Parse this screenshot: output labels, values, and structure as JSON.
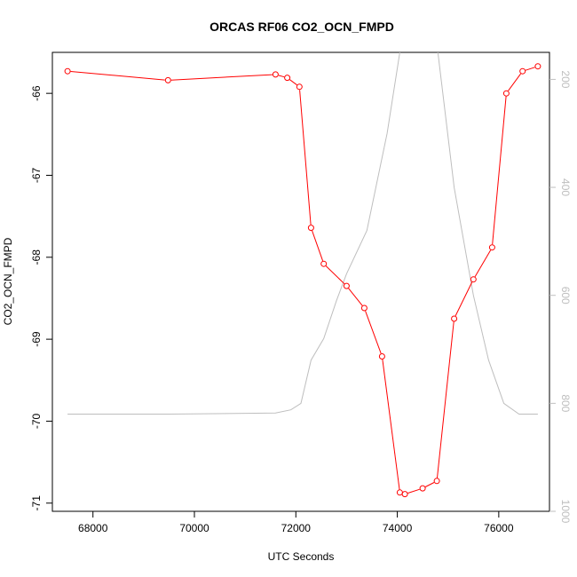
{
  "chart_data": {
    "type": "line",
    "title": "ORCAS RF06 CO2_OCN_FMPD",
    "xlabel": "UTC Seconds",
    "ylabel": "CO2_OCN_FMPD",
    "xlim": [
      67200,
      77000
    ],
    "ylim": [
      -71.1,
      -65.5
    ],
    "x_ticks": [
      "68000",
      "70000",
      "72000",
      "74000",
      "76000"
    ],
    "y_ticks": [
      "-66",
      "-67",
      "-68",
      "-69",
      "-70",
      "-71"
    ],
    "y2_ticks": [
      "200",
      "400",
      "600",
      "800",
      "1000"
    ],
    "y2_scale": "reversed",
    "y2_lim": [
      1000,
      150
    ],
    "grid": false,
    "series": [
      {
        "role": "primary",
        "color": "#ff0000",
        "markers": "open-circle",
        "x": [
          67500,
          69480,
          71600,
          71830,
          72070,
          72300,
          72550,
          73000,
          73350,
          73700,
          74050,
          74150,
          74500,
          74780,
          75120,
          75500,
          75870,
          76150,
          76470,
          76770
        ],
        "y": [
          -65.73,
          -65.84,
          -65.77,
          -65.81,
          -65.92,
          -67.64,
          -68.08,
          -68.35,
          -68.62,
          -69.21,
          -70.87,
          -70.89,
          -70.82,
          -70.73,
          -68.75,
          -68.27,
          -67.88,
          -66.0,
          -65.73,
          -65.67
        ]
      },
      {
        "role": "secondary",
        "color": "#bebebe",
        "markers": "none",
        "x": [
          67500,
          69500,
          71600,
          71900,
          72100,
          72300,
          72550,
          72800,
          73000,
          73400,
          73800,
          74050,
          74300,
          74500,
          74800,
          75120,
          75500,
          75800,
          76100,
          76400,
          76770
        ],
        "y": [
          820,
          820,
          818,
          812,
          800,
          720,
          680,
          610,
          560,
          480,
          300,
          150,
          60,
          60,
          150,
          400,
          600,
          720,
          800,
          820,
          820
        ]
      }
    ]
  }
}
